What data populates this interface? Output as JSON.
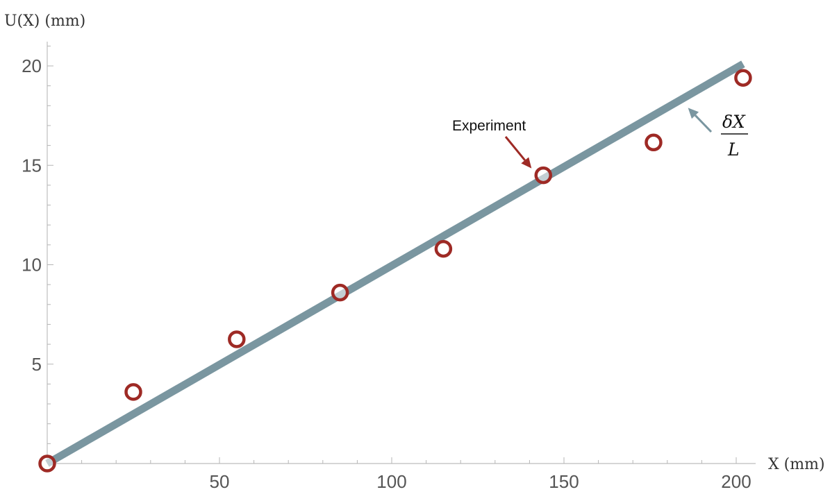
{
  "chart_data": {
    "type": "scatter",
    "title": "",
    "xlabel": "X (mm)",
    "ylabel": "U(X) (mm)",
    "xlim": [
      0,
      206
    ],
    "ylim": [
      0,
      21.5
    ],
    "x_ticks": [
      50,
      100,
      150,
      200
    ],
    "y_ticks": [
      5,
      10,
      15,
      20
    ],
    "x_tick_labels": [
      "50",
      "100",
      "150",
      "200"
    ],
    "y_tick_labels": [
      "5",
      "10",
      "15",
      "20"
    ],
    "grid": false,
    "legend": "none",
    "series": [
      {
        "kind": "points",
        "marker": "open-circle",
        "color": "#9e2a25",
        "x": [
          0,
          25,
          55,
          85,
          115,
          144,
          176,
          202
        ],
        "y": [
          0,
          3.6,
          6.25,
          8.6,
          10.8,
          14.5,
          16.15,
          19.4
        ]
      },
      {
        "kind": "line",
        "color": "#7a96a0",
        "x": [
          0,
          202
        ],
        "y": [
          0,
          20.1
        ]
      }
    ],
    "annotations": [
      {
        "text": "Experiment",
        "target": [
          143,
          14.5
        ],
        "color": "#9e2a25"
      },
      {
        "numerator": "δX",
        "denominator": "L",
        "target": [
          185,
          18.1
        ],
        "color": "#7a96a0"
      }
    ]
  }
}
